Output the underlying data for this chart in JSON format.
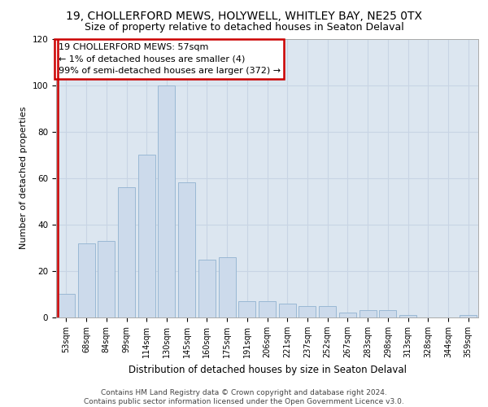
{
  "title1": "19, CHOLLERFORD MEWS, HOLYWELL, WHITLEY BAY, NE25 0TX",
  "title2": "Size of property relative to detached houses in Seaton Delaval",
  "xlabel": "Distribution of detached houses by size in Seaton Delaval",
  "ylabel": "Number of detached properties",
  "categories": [
    "53sqm",
    "68sqm",
    "84sqm",
    "99sqm",
    "114sqm",
    "130sqm",
    "145sqm",
    "160sqm",
    "175sqm",
    "191sqm",
    "206sqm",
    "221sqm",
    "237sqm",
    "252sqm",
    "267sqm",
    "283sqm",
    "298sqm",
    "313sqm",
    "328sqm",
    "344sqm",
    "359sqm"
  ],
  "values": [
    10,
    32,
    33,
    56,
    70,
    100,
    58,
    25,
    26,
    7,
    7,
    6,
    5,
    5,
    2,
    3,
    3,
    1,
    0,
    0,
    1
  ],
  "bar_color": "#ccdaeb",
  "bar_edge_color": "#9ab8d4",
  "highlight_color": "#cc0000",
  "annotation_box_text": "19 CHOLLERFORD MEWS: 57sqm\n← 1% of detached houses are smaller (4)\n99% of semi-detached houses are larger (372) →",
  "annotation_box_color": "#ffffff",
  "annotation_box_edge_color": "#cc0000",
  "ylim": [
    0,
    120
  ],
  "yticks": [
    0,
    20,
    40,
    60,
    80,
    100,
    120
  ],
  "grid_color": "#c8d4e4",
  "background_color": "#dce6f0",
  "footer_text": "Contains HM Land Registry data © Crown copyright and database right 2024.\nContains public sector information licensed under the Open Government Licence v3.0.",
  "title1_fontsize": 10,
  "title2_fontsize": 9,
  "xlabel_fontsize": 8.5,
  "ylabel_fontsize": 8,
  "tick_fontsize": 7,
  "annotation_fontsize": 8,
  "footer_fontsize": 6.5
}
